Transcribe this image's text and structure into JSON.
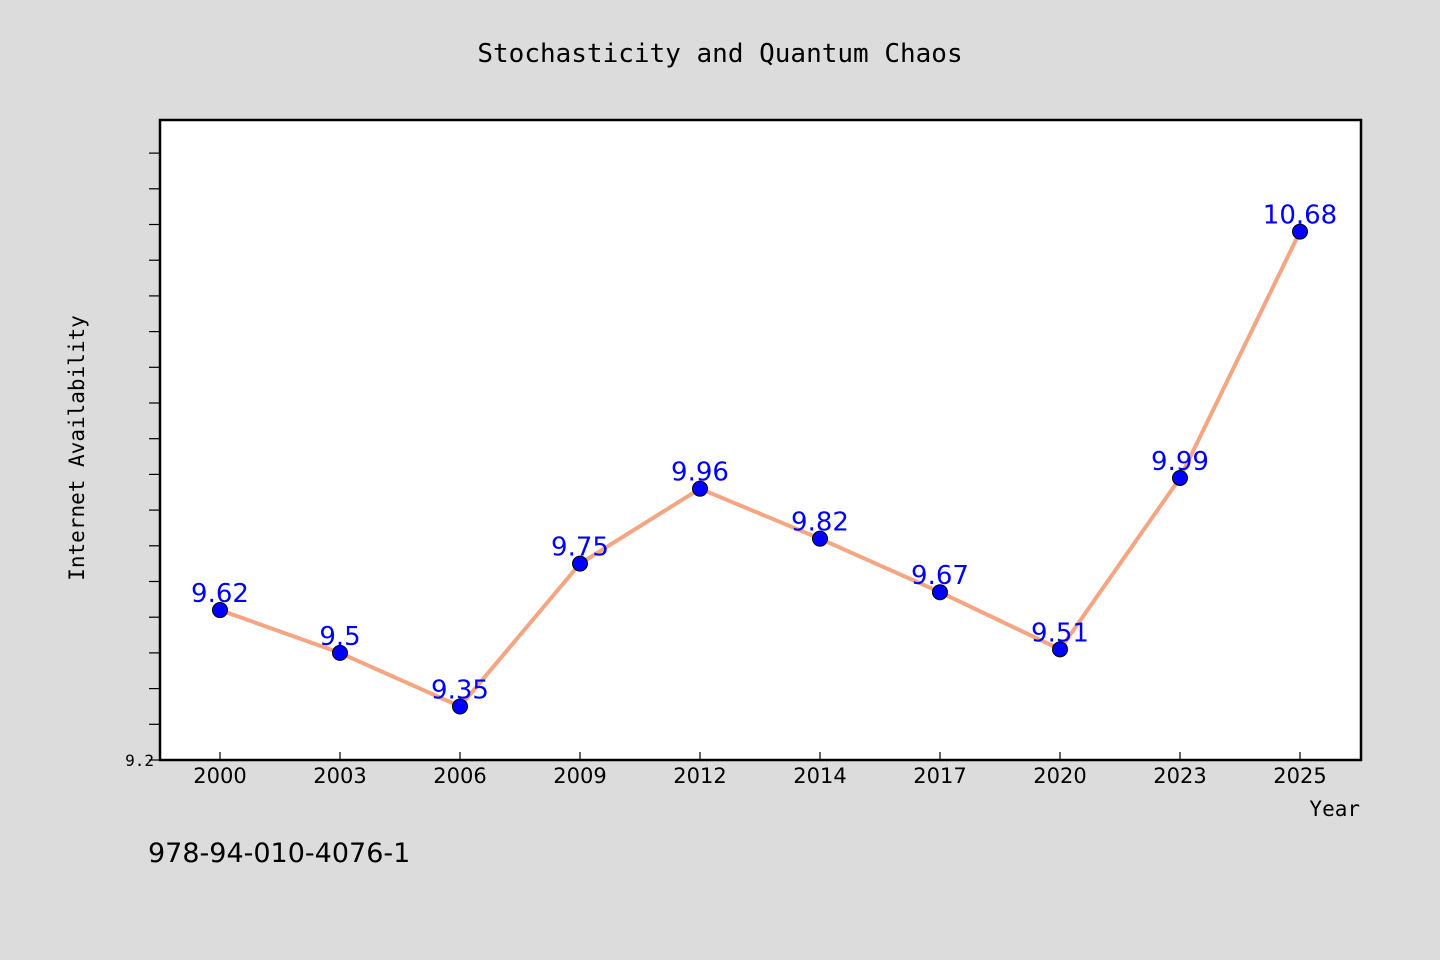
{
  "title": "Stochasticity and Quantum Chaos",
  "footer_text": "978-94-010-4076-1",
  "colors": {
    "background": "#dcdcdc",
    "plot_background": "#ffffff",
    "line": "#f4a582",
    "marker": "#0000ff",
    "data_label": "#0000ff"
  },
  "chart_data": {
    "type": "line",
    "xlabel": "Year",
    "ylabel": "Internet Availability",
    "categories": [
      "2000",
      "2003",
      "2006",
      "2009",
      "2012",
      "2014",
      "2017",
      "2020",
      "2023",
      "2025"
    ],
    "series": [
      {
        "values": [
          9.62,
          9.5,
          9.35,
          9.75,
          9.96,
          9.82,
          9.67,
          9.51,
          9.99,
          10.68
        ]
      }
    ],
    "data_labels": [
      "9.62",
      "9.5",
      "9.35",
      "9.75",
      "9.96",
      "9.82",
      "9.67",
      "9.51",
      "9.99",
      "10.68"
    ],
    "y_tick_labels": [
      "9.2"
    ],
    "ylim": [
      9.2,
      11.0
    ],
    "y_minor_tick_step": 0.1,
    "grid": false,
    "legend": "none"
  }
}
